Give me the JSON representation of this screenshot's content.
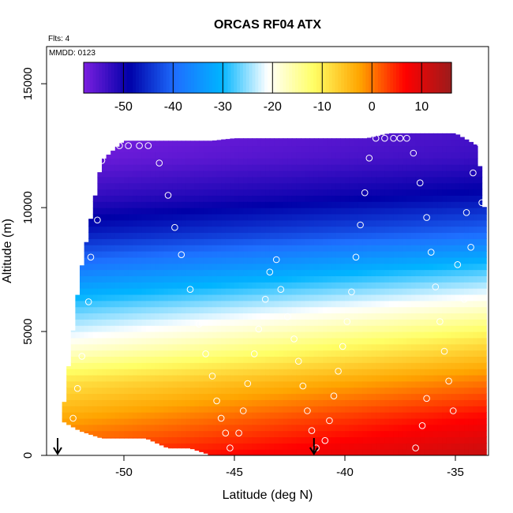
{
  "chart_data": {
    "type": "heatmap",
    "title": "ORCAS RF04 ATX",
    "annotations": {
      "flights": "Flts: 4",
      "date": "MMDD: 0123"
    },
    "xlabel": "Latitude (deg N)",
    "ylabel": "Altitude (m)",
    "xlim": [
      -53.5,
      -33.5
    ],
    "ylim": [
      0,
      16500
    ],
    "x_ticks": [
      -50,
      -45,
      -40,
      -35
    ],
    "x_tick_labels": [
      "-50",
      "-45",
      "-40",
      "-35"
    ],
    "y_ticks": [
      0,
      5000,
      10000,
      15000
    ],
    "y_tick_labels": [
      "0",
      "5000",
      "10000",
      "15000"
    ],
    "colorbar": {
      "min": -58,
      "max": 16,
      "ticks": [
        -50,
        -40,
        -30,
        -20,
        -10,
        0,
        10
      ],
      "tick_labels": [
        "-50",
        "-40",
        "-30",
        "-20",
        "-10",
        "0",
        "10"
      ],
      "stops": [
        "#7b1fe0",
        "#0000a8",
        "#1e6fff",
        "#00b4ff",
        "#ffffff",
        "#ffff66",
        "#ffa500",
        "#ff0000",
        "#9b1c1c"
      ]
    },
    "data_extent": {
      "latitudes": [
        -53,
        -52,
        -51,
        -50,
        -49,
        -48,
        -47,
        -46,
        -45,
        -44,
        -43,
        -42,
        -41,
        -40,
        -39,
        -38,
        -37,
        -36,
        -35,
        -34,
        -33.6
      ],
      "bottom_altitudes": [
        1500,
        1000,
        700,
        700,
        700,
        300,
        300,
        0,
        0,
        0,
        0,
        0,
        0,
        0,
        0,
        0,
        0,
        0,
        0,
        0,
        0
      ],
      "top_altitudes": [
        0,
        7200,
        11900,
        12700,
        12700,
        12700,
        12700,
        12700,
        12800,
        12800,
        12800,
        12800,
        12800,
        12800,
        12800,
        13000,
        13000,
        13000,
        13000,
        12500,
        9200
      ]
    },
    "temperature_profile": {
      "altitudes": [
        0,
        1500,
        3000,
        4500,
        6000,
        7500,
        9000,
        10500,
        12000,
        13000
      ],
      "south_values": [
        3,
        -3,
        -9,
        -20,
        -28,
        -38,
        -47,
        -53,
        -57,
        -58
      ],
      "north_values": [
        12,
        7,
        0,
        -8,
        -18,
        -28,
        -40,
        -48,
        -53,
        -54
      ]
    },
    "sample_points": [
      [
        -52.3,
        1500
      ],
      [
        -52.1,
        2700
      ],
      [
        -51.9,
        4000
      ],
      [
        -51.6,
        6200
      ],
      [
        -51.5,
        8000
      ],
      [
        -51.2,
        9500
      ],
      [
        -51.0,
        11900
      ],
      [
        -50.6,
        12500
      ],
      [
        -50.2,
        12500
      ],
      [
        -49.8,
        12500
      ],
      [
        -49.3,
        12500
      ],
      [
        -48.9,
        12500
      ],
      [
        -48.4,
        11800
      ],
      [
        -48.0,
        10500
      ],
      [
        -47.7,
        9200
      ],
      [
        -47.4,
        8100
      ],
      [
        -47.0,
        6700
      ],
      [
        -46.6,
        5300
      ],
      [
        -46.3,
        4100
      ],
      [
        -46.0,
        3200
      ],
      [
        -45.8,
        2200
      ],
      [
        -45.6,
        1500
      ],
      [
        -45.4,
        900
      ],
      [
        -45.2,
        300
      ],
      [
        -44.8,
        900
      ],
      [
        -44.6,
        1800
      ],
      [
        -44.4,
        2900
      ],
      [
        -44.1,
        4100
      ],
      [
        -43.9,
        5100
      ],
      [
        -43.6,
        6300
      ],
      [
        -43.4,
        7400
      ],
      [
        -43.1,
        7900
      ],
      [
        -42.9,
        6700
      ],
      [
        -42.6,
        5600
      ],
      [
        -42.3,
        4700
      ],
      [
        -42.1,
        3800
      ],
      [
        -41.9,
        2800
      ],
      [
        -41.7,
        1800
      ],
      [
        -41.5,
        1000
      ],
      [
        -41.3,
        300
      ],
      [
        -40.9,
        600
      ],
      [
        -40.7,
        1400
      ],
      [
        -40.5,
        2400
      ],
      [
        -40.3,
        3400
      ],
      [
        -40.1,
        4400
      ],
      [
        -39.9,
        5400
      ],
      [
        -39.7,
        6600
      ],
      [
        -39.5,
        8000
      ],
      [
        -39.3,
        9300
      ],
      [
        -39.1,
        10600
      ],
      [
        -38.9,
        12000
      ],
      [
        -38.6,
        12800
      ],
      [
        -38.2,
        12800
      ],
      [
        -37.8,
        12800
      ],
      [
        -37.5,
        12800
      ],
      [
        -37.2,
        12800
      ],
      [
        -36.9,
        12200
      ],
      [
        -36.6,
        11000
      ],
      [
        -36.3,
        9600
      ],
      [
        -36.1,
        8200
      ],
      [
        -35.9,
        6800
      ],
      [
        -35.7,
        5400
      ],
      [
        -35.5,
        4200
      ],
      [
        -35.3,
        3000
      ],
      [
        -35.1,
        1800
      ],
      [
        -36.8,
        300
      ],
      [
        -36.5,
        1200
      ],
      [
        -36.3,
        2300
      ],
      [
        -34.9,
        7700
      ],
      [
        -34.5,
        9800
      ],
      [
        -34.2,
        11400
      ],
      [
        -33.9,
        12600
      ],
      [
        -34.6,
        6300
      ],
      [
        -34.3,
        8400
      ],
      [
        -33.8,
        10200
      ]
    ],
    "arrows": [
      -53.0,
      -41.4
    ]
  }
}
